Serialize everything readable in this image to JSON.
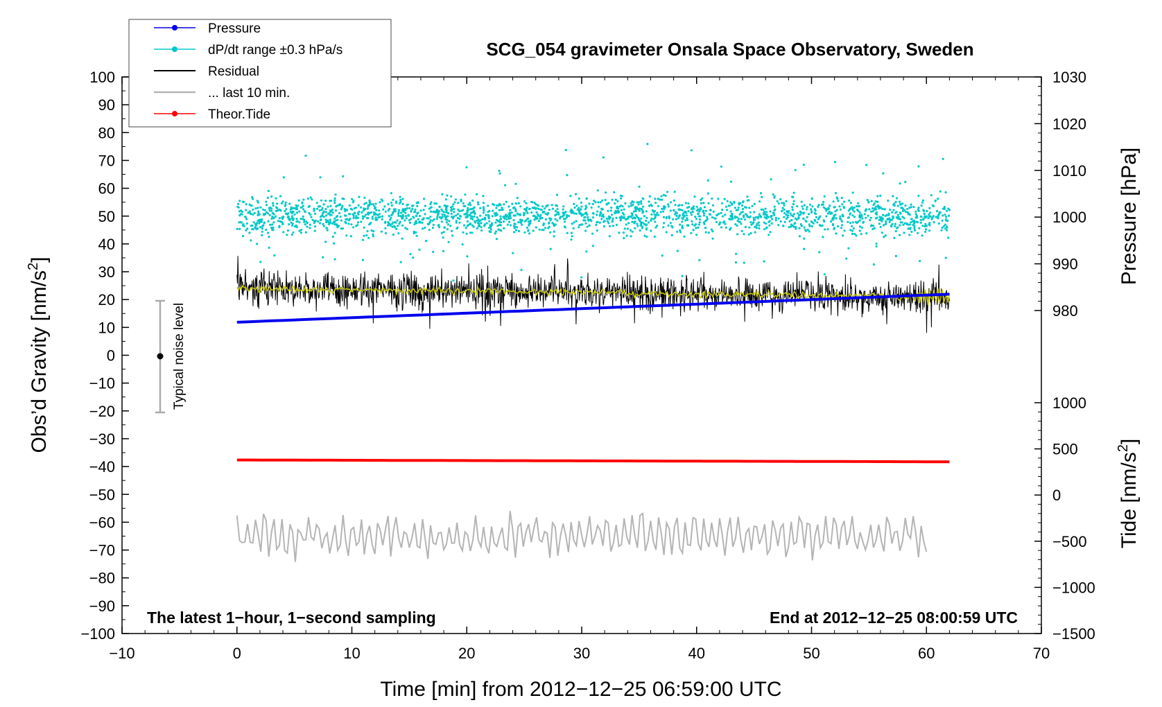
{
  "chart_data": {
    "type": "line",
    "title": "SCG_054 gravimeter Onsala Space Observatory, Sweden",
    "xlabel": "Time [min] from 2012−12−25 06:59:00 UTC",
    "ylabel_left": "Obs’d Gravity [nm/s²]",
    "ylabel_left_base": "Obs’d Gravity [nm/s",
    "ylabel_left_sup": "2",
    "ylabel_left_end": "]",
    "ylabel_right_top": "Pressure [hPa]",
    "ylabel_right_bottom": "Tide [nm/s²]",
    "ylabel_right_bottom_base": "Tide [nm/s",
    "ylabel_right_bottom_sup": "2",
    "ylabel_right_bottom_end": "]",
    "xlim": [
      -10,
      70
    ],
    "ylim_left": [
      -100,
      100
    ],
    "x_ticks": [
      "−10",
      "0",
      "10",
      "20",
      "30",
      "40",
      "50",
      "60",
      "70"
    ],
    "x_tick_values": [
      -10,
      0,
      10,
      20,
      30,
      40,
      50,
      60,
      70
    ],
    "y_left_ticks": [
      "100",
      "90",
      "80",
      "70",
      "60",
      "50",
      "40",
      "30",
      "20",
      "10",
      "0",
      "−10",
      "−20",
      "−30",
      "−40",
      "−50",
      "−60",
      "−70",
      "−80",
      "−90",
      "−100"
    ],
    "y_left_tick_values": [
      100,
      90,
      80,
      70,
      60,
      50,
      40,
      30,
      20,
      10,
      0,
      -10,
      -20,
      -30,
      -40,
      -50,
      -60,
      -70,
      -80,
      -90,
      -100
    ],
    "y_right_pressure_ticks": [
      "1030",
      "1020",
      "1010",
      "1000",
      "990",
      "980"
    ],
    "y_right_pressure_values": [
      1030,
      1020,
      1010,
      1000,
      990,
      980
    ],
    "y_right_tide_ticks": [
      "1000",
      "500",
      "0",
      "−500",
      "−1000",
      "−1500"
    ],
    "y_right_tide_values": [
      1000,
      500,
      0,
      -500,
      -1000,
      -1500
    ],
    "annotation_left": "The latest 1−hour, 1−second sampling",
    "annotation_right": "End at 2012−12−25 08:00:59 UTC",
    "noise_label": "Typical noise level",
    "noise_bar": {
      "x": -7,
      "center": 0,
      "low": -20,
      "high": 20
    },
    "legend": [
      {
        "label": "Pressure",
        "color": "#0000ee",
        "marker": true
      },
      {
        "label": "dP/dt range ±0.3 hPa/s",
        "color": "#00c8c8",
        "marker": true
      },
      {
        "label": "Residual",
        "color": "#000000",
        "marker": false
      },
      {
        "label": "... last 10 min.",
        "color": "#b4b4b4",
        "marker": false
      },
      {
        "label": "Theor.Tide",
        "color": "#ff0000",
        "marker": true
      }
    ],
    "series": [
      {
        "name": "Pressure",
        "unit": "hPa",
        "x_range": [
          0,
          62
        ],
        "start": 977.5,
        "end": 983.5,
        "color": "#0000ee"
      },
      {
        "name": "dP/dt range ±0.3 hPa/s",
        "x_range": [
          0,
          62
        ],
        "center": 50,
        "spread": 7,
        "color": "#00c8c8"
      },
      {
        "name": "Residual",
        "x_range": [
          0,
          62
        ],
        "start": 24,
        "end": 21,
        "amplitude": 6,
        "color": "#000000"
      },
      {
        "name": "Residual smoothed",
        "x_range": [
          0,
          62
        ],
        "start": 24,
        "end": 21,
        "color": "#cccc00"
      },
      {
        "name": "Theor.Tide",
        "unit": "nm/s²",
        "x_range": [
          0,
          62
        ],
        "start": 380,
        "end": 360,
        "color": "#ff0000"
      },
      {
        "name": "... last 10 min.",
        "x_range": [
          0,
          60
        ],
        "center": -65,
        "amplitude": 6,
        "color": "#b4b4b4"
      }
    ]
  }
}
